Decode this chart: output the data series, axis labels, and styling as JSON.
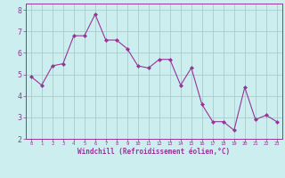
{
  "x": [
    0,
    1,
    2,
    3,
    4,
    5,
    6,
    7,
    8,
    9,
    10,
    11,
    12,
    13,
    14,
    15,
    16,
    17,
    18,
    19,
    20,
    21,
    22,
    23
  ],
  "y": [
    4.9,
    4.5,
    5.4,
    5.5,
    6.8,
    6.8,
    7.8,
    6.6,
    6.6,
    6.2,
    5.4,
    5.3,
    5.7,
    5.7,
    4.5,
    5.3,
    3.6,
    2.8,
    2.8,
    2.4,
    4.4,
    2.9,
    3.1,
    2.8
  ],
  "line_color": "#993399",
  "marker": "D",
  "marker_size": 2,
  "bg_color": "#cceeee",
  "grid_color": "#aacccc",
  "xlabel": "Windchill (Refroidissement éolien,°C)",
  "xlabel_color": "#993399",
  "tick_color": "#993399",
  "ylim": [
    2,
    8.3
  ],
  "xlim": [
    -0.5,
    23.5
  ],
  "yticks": [
    2,
    3,
    4,
    5,
    6,
    7,
    8
  ],
  "xticks": [
    0,
    1,
    2,
    3,
    4,
    5,
    6,
    7,
    8,
    9,
    10,
    11,
    12,
    13,
    14,
    15,
    16,
    17,
    18,
    19,
    20,
    21,
    22,
    23
  ]
}
